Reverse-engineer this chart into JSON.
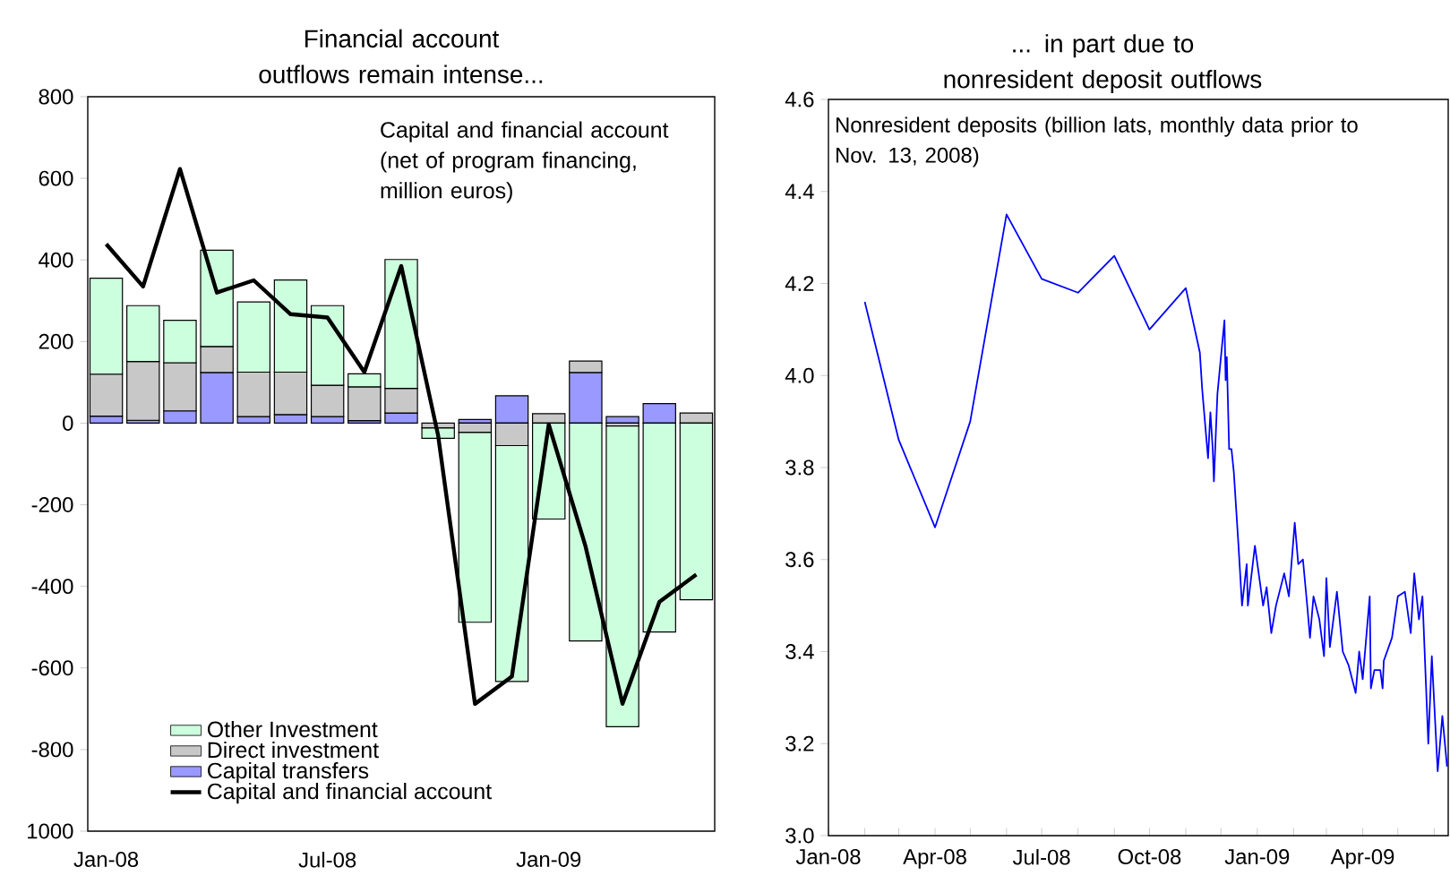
{
  "chart_data": [
    {
      "type": "bar",
      "title": "Financial account outflows remain intense...",
      "annotations": [
        "Capital and financial account (net of program financing, million euros)"
      ],
      "categories": [
        "Jan-08",
        null,
        null,
        null,
        null,
        null,
        "Jul-08",
        null,
        null,
        null,
        null,
        null,
        "Jan-09",
        null,
        null,
        null,
        null
      ],
      "stacked": true,
      "series": [
        {
          "name": "Capital transfers",
          "type": "bar",
          "color": "#9999ff",
          "values": [
            17,
            7,
            30,
            124,
            16,
            21,
            16,
            6,
            25,
            null,
            9,
            67,
            null,
            124,
            16,
            48,
            null
          ]
        },
        {
          "name": "Direct investment",
          "type": "bar",
          "color": "#c8c8c8",
          "values": [
            103,
            144,
            118,
            64,
            109,
            104,
            77,
            83,
            60,
            -12,
            -23,
            -55,
            23,
            28,
            -7,
            null,
            25
          ]
        },
        {
          "name": "Other Investment",
          "type": "bar",
          "color": "#ccffdd",
          "values": [
            235,
            137,
            104,
            236,
            172,
            226,
            195,
            32,
            316,
            -25,
            -465,
            -578,
            -235,
            -534,
            -737,
            -512,
            -433
          ]
        },
        {
          "name": "Capital and financial account",
          "type": "line",
          "color": "#000000",
          "values": [
            439,
            335,
            623,
            320,
            350,
            267,
            259,
            125,
            385,
            -30,
            -688,
            -621,
            -3,
            -303,
            -688,
            -438,
            -371
          ]
        }
      ],
      "ylim": [
        -1000,
        800
      ],
      "yticks": [
        800,
        600,
        400,
        200,
        0,
        -200,
        -400,
        -600,
        -800,
        {
          "value": -1000,
          "label": "1000"
        }
      ],
      "legend": "bottom left"
    },
    {
      "type": "line",
      "title": "... in part due to nonresident deposit outflows",
      "annotations": [
        "Nonresident deposits (billion lats, monthly data prior to Nov. 13, 2008)"
      ],
      "x": [
        "2008-02-01",
        "2008-03-01",
        "2008-04-01",
        "2008-05-01",
        "2008-06-01",
        "2008-07-01",
        "2008-08-01",
        "2008-09-01",
        "2008-10-01",
        "2008-11-01",
        "2008-11-13",
        "2008-11-15",
        "2008-11-20",
        "2008-11-22",
        "2008-11-24",
        "2008-11-25",
        "2008-11-28",
        "2008-12-04",
        "2008-12-05",
        "2008-12-06",
        "2008-12-08",
        "2008-12-10",
        "2008-12-12",
        "2008-12-16",
        "2008-12-19",
        "2008-12-23",
        "2008-12-24",
        "2008-12-30",
        "2009-01-06",
        "2009-01-09",
        "2009-01-13",
        "2009-01-17",
        "2009-01-24",
        "2009-01-28",
        "2009-02-02",
        "2009-02-05",
        "2009-02-09",
        "2009-02-13",
        "2009-02-15",
        "2009-02-18",
        "2009-02-23",
        "2009-02-27",
        "2009-03-01",
        "2009-03-04",
        "2009-03-10",
        "2009-03-15",
        "2009-03-20",
        "2009-03-26",
        "2009-03-29",
        "2009-04-01",
        "2009-04-07",
        "2009-04-08",
        "2009-04-11",
        "2009-04-16",
        "2009-04-18",
        "2009-04-19",
        "2009-04-26",
        "2009-05-01",
        "2009-05-07",
        "2009-05-12",
        "2009-05-15",
        "2009-05-19",
        "2009-05-22",
        "2009-05-27",
        "2009-05-30",
        "2009-06-04",
        "2009-06-08",
        "2009-06-12"
      ],
      "values": [
        4.16,
        3.86,
        3.67,
        3.9,
        4.35,
        4.21,
        4.18,
        4.26,
        4.1,
        4.19,
        4.05,
        3.97,
        3.82,
        3.92,
        3.84,
        3.77,
        3.96,
        4.12,
        3.99,
        4.04,
        3.84,
        3.84,
        3.79,
        3.63,
        3.5,
        3.59,
        3.5,
        3.63,
        3.5,
        3.54,
        3.44,
        3.5,
        3.57,
        3.52,
        3.68,
        3.59,
        3.6,
        3.49,
        3.43,
        3.52,
        3.47,
        3.39,
        3.56,
        3.41,
        3.53,
        3.4,
        3.37,
        3.31,
        3.4,
        3.34,
        3.52,
        3.32,
        3.36,
        3.36,
        3.32,
        3.38,
        3.43,
        3.52,
        3.53,
        3.44,
        3.57,
        3.47,
        3.52,
        3.2,
        3.39,
        3.14,
        3.26,
        3.15
      ],
      "color": "#0000ff",
      "xlim": [
        "2008-01-01",
        "2009-06-13"
      ],
      "xticks": [
        {
          "value": "2008-01-01",
          "label": "Jan-08"
        },
        {
          "value": "2008-02-01",
          "label": null
        },
        {
          "value": "2008-03-01",
          "label": null
        },
        {
          "value": "2008-04-01",
          "label": "Apr-08"
        },
        {
          "value": "2008-05-01",
          "label": null
        },
        {
          "value": "2008-06-01",
          "label": null
        },
        {
          "value": "2008-07-01",
          "label": "Jul-08"
        },
        {
          "value": "2008-08-01",
          "label": null
        },
        {
          "value": "2008-09-01",
          "label": null
        },
        {
          "value": "2008-10-01",
          "label": "Oct-08"
        },
        {
          "value": "2008-11-01",
          "label": null
        },
        {
          "value": "2008-12-01",
          "label": null
        },
        {
          "value": "2009-01-01",
          "label": "Jan-09"
        },
        {
          "value": "2009-02-01",
          "label": null
        },
        {
          "value": "2009-03-01",
          "label": null
        },
        {
          "value": "2009-04-01",
          "label": "Apr-09"
        },
        {
          "value": "2009-05-01",
          "label": null
        },
        {
          "value": "2009-06-01",
          "label": null
        }
      ],
      "ylim": [
        3.0,
        4.6
      ],
      "yticks": [
        {
          "value": 3.0,
          "label": "3.0"
        },
        3.2,
        3.4,
        3.6,
        3.8,
        {
          "value": 4.0,
          "label": "4.0"
        },
        4.2,
        4.4,
        4.6
      ]
    }
  ]
}
